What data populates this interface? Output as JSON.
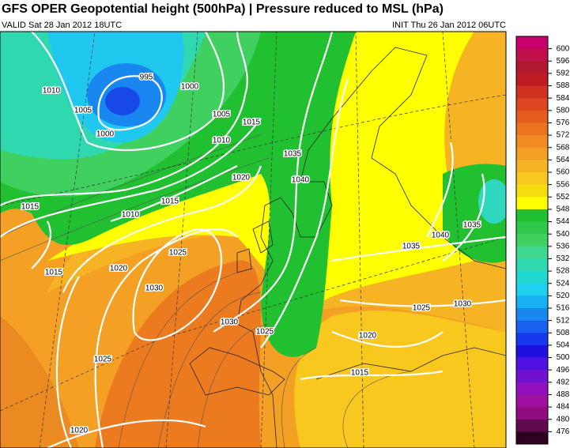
{
  "header": {
    "title": "GFS OPER Geopotential height (500hPa) | Pressure reduced to MSL (hPa)",
    "valid": "VALID Sat 28 Jan 2012 18UTC",
    "init": "INIT Thu 26 Jan 2012 06UTC"
  },
  "colorbar": {
    "levels": [
      600,
      596,
      592,
      588,
      584,
      580,
      576,
      572,
      568,
      564,
      560,
      556,
      552,
      548,
      544,
      540,
      536,
      532,
      528,
      524,
      520,
      516,
      512,
      508,
      504,
      500,
      496,
      492,
      488,
      484,
      480,
      476
    ],
    "colors": [
      "#c8006e",
      "#c0104a",
      "#b01830",
      "#c01a22",
      "#d03020",
      "#dc4620",
      "#e65c1e",
      "#ec741e",
      "#f08a22",
      "#f4a024",
      "#f6b424",
      "#f8c81e",
      "#f4dc10",
      "#ffff00",
      "#20c030",
      "#30c848",
      "#40d060",
      "#40d890",
      "#30d8b0",
      "#20d8d0",
      "#20d0f0",
      "#18b0f0",
      "#1888f0",
      "#1860f0",
      "#1838f0",
      "#2010e0",
      "#5010e0",
      "#7010d0",
      "#9010c0",
      "#a010a0",
      "#900c80",
      "#600a50",
      "#300020"
    ]
  },
  "isobar_labels": [
    "995",
    "1000",
    "1005",
    "1000",
    "1010",
    "1005",
    "1010",
    "1015",
    "1035",
    "1040",
    "1020",
    "1015",
    "1010",
    "1015",
    "1025",
    "1020",
    "1030",
    "1015",
    "1030",
    "1025",
    "1025",
    "1035",
    "1040",
    "1035",
    "1025",
    "1030",
    "1020",
    "1015",
    "1020"
  ]
}
